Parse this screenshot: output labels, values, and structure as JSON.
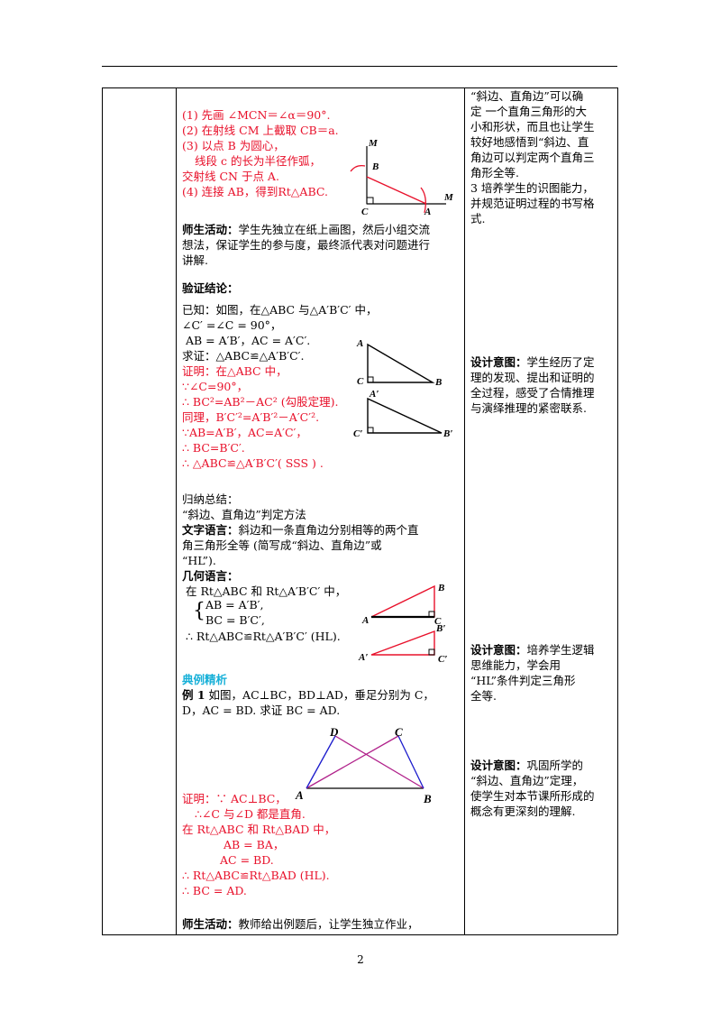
{
  "construction": {
    "step1": "(1) 先画 ∠MCN＝∠α＝90°.",
    "step2": "(2) 在射线 CM 上截取 CB＝a.",
    "step3a": "(3) 以点 B 为圆心，",
    "step3b": "线段 c 的长为半径作弧，",
    "step3c": "交射线 CN 于点 A.",
    "step4": "(4) 连接 AB，得到Rt△ABC.",
    "fig_labels": {
      "M1": "M",
      "B": "B",
      "C": "C",
      "A": "A",
      "M2": "M"
    }
  },
  "activity1": {
    "label": "师生活动：",
    "line1": "学生先独立在纸上画图，然后小组交流",
    "line2": "想法，保证学生的参与度，最终派代表对问题进行",
    "line3": "讲解."
  },
  "verify": {
    "title": "验证结论：",
    "given1": "已知：如图，在△ABC 与△A′B′C′ 中，",
    "given2": "∠C′ =∠C = 90°，",
    "given3": "AB = A′B′，AC = A′C′.",
    "prove": "求证：△ABC≌△A′B′C′.",
    "p1": "证明：在△ABC 中，",
    "p2": "∵∠C=90°，",
    "p3": "∴ BC²=AB²－AC² (勾股定理).",
    "p4": "同理，B′C′²=A′B′²－A′C′².",
    "p5": "∵AB=A′B′，AC=A′C′，",
    "p6": "∴ BC=B′C′.",
    "p7": "∴ △ABC≌△A′B′C′( SSS ) .",
    "fig_labels": {
      "A": "A",
      "C": "C",
      "B": "B",
      "A2": "A′",
      "C2": "C′",
      "B2": "B′"
    }
  },
  "summary": {
    "intro": "归纳总结：",
    "method": "“斜边、直角边”判定方法",
    "text_label": "文字语言：",
    "text1": "斜边和一条直角边分别相等的两个直",
    "text2": "角三角形全等 (简写成“斜边、直角边”或",
    "text3": "“HL”).",
    "geo_label": "几何语言：",
    "geo1": "在 Rt△ABC 和 Rt△A′B′C′ 中，",
    "geo2": "AB = A′B′,",
    "geo3": "BC = B′C′,",
    "geo4": "∴ Rt△ABC≌Rt△A′B′C′ (HL).",
    "fig_labels": {
      "B": "B",
      "A": "A",
      "C": "C",
      "B2": "B′",
      "A2": "A′",
      "C2": "C′"
    }
  },
  "example": {
    "section": "典例精析",
    "label": "例 1",
    "line1": " 如图，AC⊥BC，BD⊥AD，垂足分别为 C，",
    "line2": "D，AC = BD. 求证 BC = AD.",
    "fig_labels": {
      "D": "D",
      "C": "C",
      "A": "A",
      "B": "B"
    },
    "proof1": "证明：∵ AC⊥BC，",
    "proof2": "∴∠C 与∠D 都是直角.",
    "proof3": "在 Rt△ABC 和 Rt△BAD 中，",
    "proof4": "AB = BA，",
    "proof5": "AC = BD.",
    "proof6": "∴ Rt△ABC≌Rt△BAD (HL).",
    "proof7": "∴ BC = AD."
  },
  "activity2": {
    "label": "师生活动：",
    "line1": "教师给出例题后，让学生独立作业，"
  },
  "right_column": {
    "block1": [
      "“斜边、直角边”可以确",
      "定 一个直角三角形的大",
      "小和形状，而且也让学生",
      "较好地感悟到“斜边、直",
      "角边可以判定两个直角三",
      "角形全等."
    ],
    "block1b": [
      "3 培养学生的识图能力，",
      "并规范证明过程的书写格",
      "式."
    ],
    "design_label": "设计意图：",
    "design1": [
      "学生经历了定",
      "理的发现、提出和证明的",
      "全过程，感受了合情推理",
      "与演绎推理的紧密联系."
    ],
    "design2": [
      "培养学生逻辑",
      "思维能力，学会用",
      "“HL”条件判定三角形",
      "全等."
    ],
    "design3": [
      "巩固所学的",
      "“斜边、直角边”定理，",
      "使学生对本节课所形成的",
      "概念有更深刻的理解."
    ]
  },
  "page_number": "2"
}
